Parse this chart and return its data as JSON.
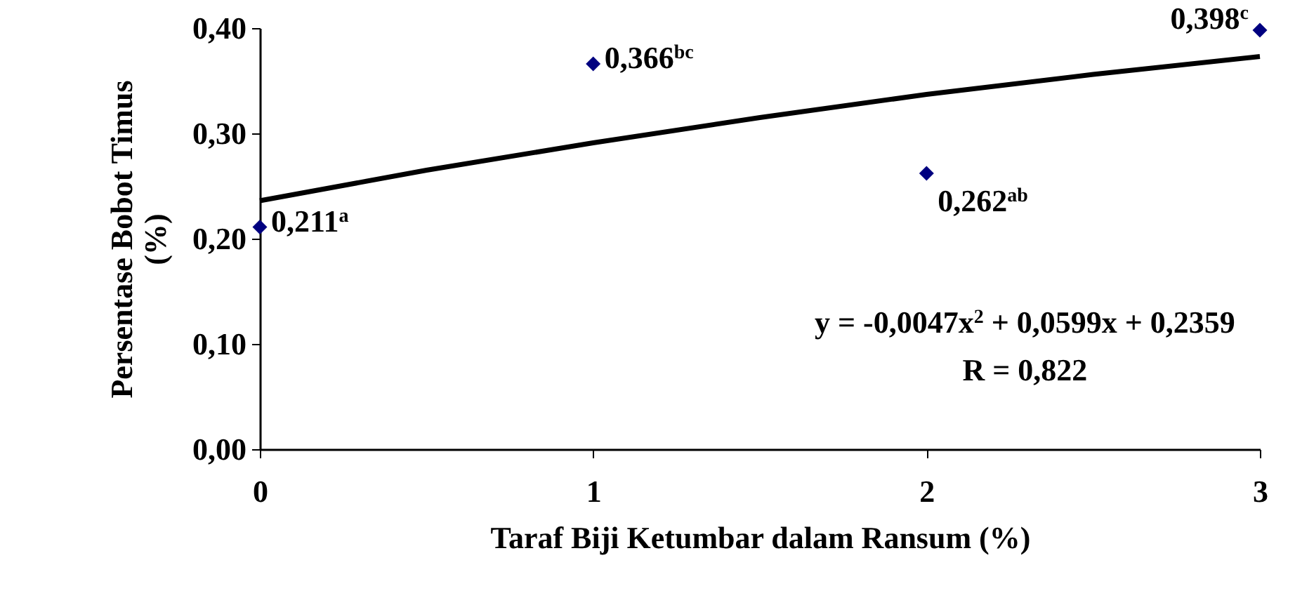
{
  "chart_data": {
    "type": "scatter",
    "xlabel": "Taraf Biji Ketumbar dalam Ransum (%)",
    "ylabel": "Persentase Bobot Timus (%)",
    "x": [
      0,
      1,
      2,
      3
    ],
    "series": [
      {
        "color": "#000080",
        "marker": "diamond",
        "values": [
          0.211,
          0.366,
          0.262,
          0.398
        ],
        "value_labels": [
          "0,211$^{a}$",
          "0,366$^{bc}$",
          "0,262$^{ab}$",
          "0,398$^{c}$"
        ]
      },
      {
        "type": "line",
        "color": "#000000",
        "x": [
          0,
          0.5,
          1,
          1.5,
          2,
          2.5,
          3
        ],
        "values": [
          0.236,
          0.265,
          0.291,
          0.315,
          0.337,
          0.356,
          0.373
        ]
      }
    ],
    "xlim": [
      0,
      3
    ],
    "xticks": [
      0,
      1,
      2,
      3
    ],
    "ylim": [
      0,
      0.4
    ],
    "yticks": [
      {
        "value": 0,
        "label": "0,00"
      },
      {
        "value": 0.1,
        "label": "0,10"
      },
      {
        "value": 0.2,
        "label": "0,20"
      },
      {
        "value": 0.3,
        "label": "0,30"
      },
      {
        "value": 0.4,
        "label": "0,40"
      }
    ],
    "grid": false,
    "annotations": [
      "y = -0,0047x$^{2}$ + 0,0599x + 0,2359",
      "R = 0,822"
    ]
  }
}
